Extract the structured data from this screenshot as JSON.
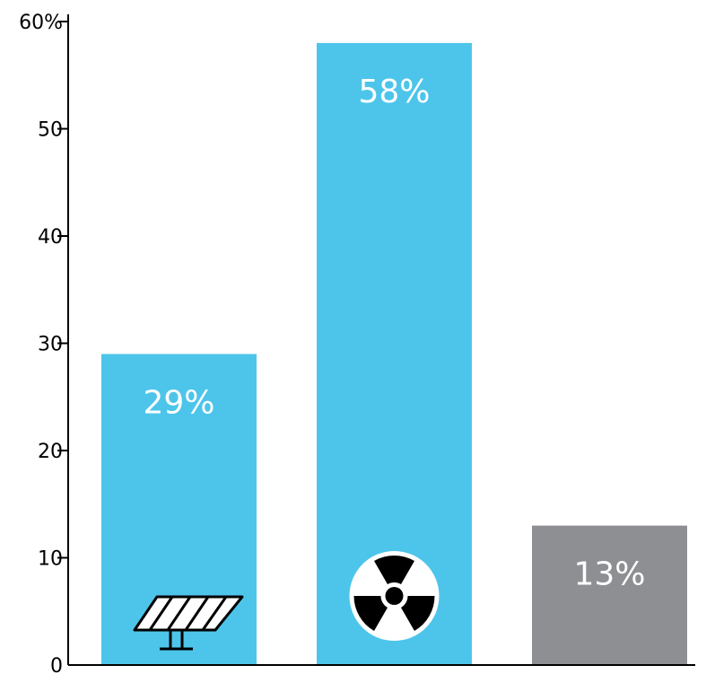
{
  "chart_data": {
    "type": "bar",
    "categories": [
      "",
      "",
      ""
    ],
    "values": [
      29,
      58,
      13
    ],
    "value_labels": [
      "29%",
      "58%",
      "13%"
    ],
    "bar_colors": [
      "#4dc5ea",
      "#4dc5ea",
      "#8d8f93"
    ],
    "bar_icons": [
      "solar-panel-icon",
      "radiation-icon",
      ""
    ],
    "title": "",
    "xlabel": "",
    "ylabel": "",
    "ylim": [
      0,
      60
    ],
    "y_ticks": [
      {
        "value": 0,
        "label": "0"
      },
      {
        "value": 10,
        "label": "10"
      },
      {
        "value": 20,
        "label": "20"
      },
      {
        "value": 30,
        "label": "30"
      },
      {
        "value": 40,
        "label": "40"
      },
      {
        "value": 50,
        "label": "50"
      },
      {
        "value": 60,
        "label": "60%"
      }
    ],
    "grid": false,
    "legend": "none"
  },
  "colors": {
    "axis": "#000000",
    "label_text": "#ffffff",
    "icon": "#000000",
    "icon_bg": "#ffffff"
  }
}
